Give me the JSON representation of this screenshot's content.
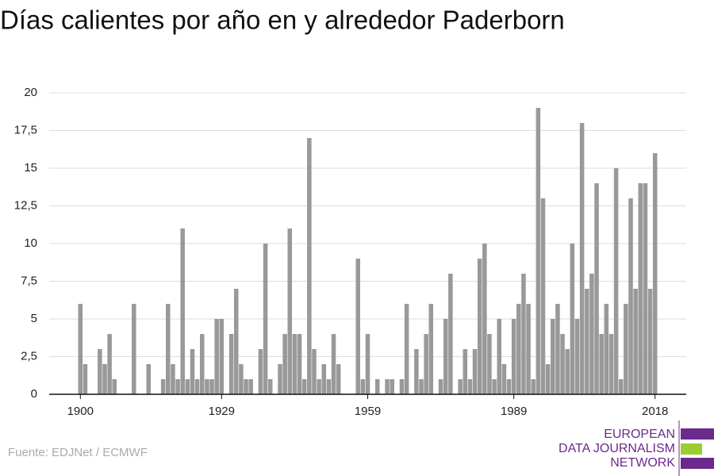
{
  "chart_data": {
    "type": "bar",
    "title": "Días calientes por año en y alrededor Paderborn",
    "source": "Fuente: EDJNet / ECMWF",
    "logo": [
      "EUROPEAN",
      "DATA JOURNALISM",
      "NETWORK"
    ],
    "color": "#999999",
    "x": [
      1900,
      1901,
      1902,
      1903,
      1904,
      1905,
      1906,
      1907,
      1908,
      1909,
      1910,
      1911,
      1912,
      1913,
      1914,
      1915,
      1916,
      1917,
      1918,
      1919,
      1920,
      1921,
      1922,
      1923,
      1924,
      1925,
      1926,
      1927,
      1928,
      1929,
      1930,
      1931,
      1932,
      1933,
      1934,
      1935,
      1936,
      1937,
      1938,
      1939,
      1940,
      1941,
      1942,
      1943,
      1944,
      1945,
      1946,
      1947,
      1948,
      1949,
      1950,
      1951,
      1952,
      1953,
      1954,
      1955,
      1956,
      1957,
      1958,
      1959,
      1960,
      1961,
      1962,
      1963,
      1964,
      1965,
      1966,
      1967,
      1968,
      1969,
      1970,
      1971,
      1972,
      1973,
      1974,
      1975,
      1976,
      1977,
      1978,
      1979,
      1980,
      1981,
      1982,
      1983,
      1984,
      1985,
      1986,
      1987,
      1988,
      1989,
      1990,
      1991,
      1992,
      1993,
      1994,
      1995,
      1996,
      1997,
      1998,
      1999,
      2000,
      2001,
      2002,
      2003,
      2004,
      2005,
      2006,
      2007,
      2008,
      2009,
      2010,
      2011,
      2012,
      2013,
      2014,
      2015,
      2016,
      2017,
      2018
    ],
    "values": [
      6,
      2,
      0,
      0,
      3,
      2,
      4,
      1,
      0,
      0,
      0,
      6,
      0,
      0,
      2,
      0,
      0,
      1,
      6,
      2,
      1,
      11,
      1,
      3,
      1,
      4,
      1,
      1,
      5,
      5,
      0,
      4,
      7,
      2,
      1,
      1,
      0,
      3,
      10,
      1,
      0,
      2,
      4,
      11,
      4,
      4,
      1,
      17,
      3,
      1,
      2,
      1,
      4,
      2,
      0,
      0,
      0,
      9,
      1,
      4,
      0,
      1,
      0,
      1,
      1,
      0,
      1,
      6,
      0,
      3,
      1,
      4,
      6,
      0,
      1,
      5,
      8,
      0,
      1,
      3,
      1,
      3,
      9,
      10,
      4,
      1,
      5,
      2,
      1,
      5,
      6,
      8,
      6,
      1,
      19,
      13,
      2,
      5,
      6,
      4,
      3,
      10,
      5,
      18,
      7,
      8,
      14,
      4,
      6,
      4,
      15,
      1,
      6,
      13,
      7,
      14,
      14,
      7,
      16
    ],
    "xlim": [
      1893.6,
      2024.4
    ],
    "xticks": [
      1900,
      1929,
      1959,
      1989,
      2018
    ],
    "ylim": [
      0,
      20
    ],
    "yticks": [
      0,
      {
        "value": 2.5,
        "label": "2,5"
      },
      5,
      {
        "value": 7.5,
        "label": "7,5"
      },
      10,
      {
        "value": 12.5,
        "label": "12,5"
      },
      15,
      {
        "value": 17.5,
        "label": "17,5"
      },
      20
    ],
    "grid": true
  }
}
